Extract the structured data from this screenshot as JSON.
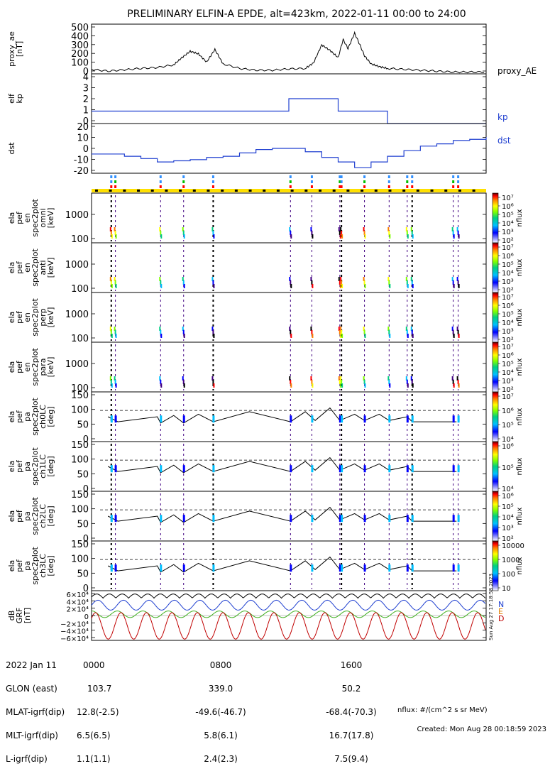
{
  "title": "PRELIMINARY ELFIN-A EPDE, alt=423km, 2022-01-11 00:00 to 24:00",
  "panels": {
    "ae": {
      "ylabel_lines": [
        "proxy_ae",
        "[nT]"
      ],
      "ticks": [
        "500",
        "400",
        "300",
        "200",
        "100",
        "0"
      ],
      "legend": "proxy_AE"
    },
    "kp": {
      "ylabel_lines": [
        "elf",
        "kp"
      ],
      "ticks": [
        "4",
        "3",
        "2",
        "1",
        "0"
      ],
      "legend": "kp"
    },
    "dst": {
      "ylabel_lines": [
        "dst"
      ],
      "ticks": [
        "20",
        "10",
        "0",
        "-10",
        "-20"
      ],
      "legend": "dst"
    },
    "spec_omni": {
      "ylabel_lines": [
        "ela",
        "pef",
        "en",
        "spec2plot",
        "omni",
        "[keV]"
      ],
      "ticks": [
        "1000",
        "100"
      ]
    },
    "spec_anti": {
      "ylabel_lines": [
        "ela",
        "pef",
        "en",
        "spec2plot",
        "anti",
        "[keV]"
      ],
      "ticks": [
        "1000",
        "100"
      ]
    },
    "spec_perp": {
      "ylabel_lines": [
        "ela",
        "pef",
        "en",
        "spec2plot",
        "perp",
        "[keV]"
      ],
      "ticks": [
        "1000",
        "100"
      ]
    },
    "spec_para": {
      "ylabel_lines": [
        "ela",
        "pef",
        "en",
        "spec2plot",
        "para",
        "[keV]"
      ],
      "ticks": [
        "1000",
        "100"
      ]
    },
    "pa0": {
      "ylabel_lines": [
        "ela",
        "pef",
        "pa",
        "spec2plot",
        "ch0LC",
        "[deg]"
      ],
      "ticks": [
        "150",
        "100",
        "50",
        "0"
      ]
    },
    "pa1": {
      "ylabel_lines": [
        "ela",
        "pef",
        "pa",
        "spec2plot",
        "ch1LC",
        "[deg]"
      ],
      "ticks": [
        "150",
        "100",
        "50",
        "0"
      ]
    },
    "pa2": {
      "ylabel_lines": [
        "ela",
        "pef",
        "pa",
        "spec2plot",
        "ch2LC",
        "[deg]"
      ],
      "ticks": [
        "150",
        "100",
        "50",
        "0"
      ]
    },
    "pa3": {
      "ylabel_lines": [
        "ela",
        "pef",
        "pa",
        "spec2plot",
        "ch3LC",
        "[deg]"
      ],
      "ticks": [
        "150",
        "100",
        "50",
        "0"
      ]
    },
    "bfield": {
      "ylabel_lines": [
        "dB",
        "GRF",
        "[nT]"
      ],
      "ticks": [
        "6×10⁴",
        "4×10⁴",
        "2×10⁴",
        "0",
        "−2×10⁴",
        "−4×10⁴",
        "−6×10⁴"
      ],
      "components": [
        "N",
        "E",
        "D"
      ]
    }
  },
  "colorbars": [
    {
      "ticks": [
        "10⁷",
        "10⁶",
        "10⁵",
        "10⁴",
        "10³",
        "10²"
      ],
      "label": "nflux"
    },
    {
      "ticks": [
        "10⁷",
        "10⁶",
        "10⁵",
        "10⁴",
        "10³",
        "10²"
      ],
      "label": "nflux"
    },
    {
      "ticks": [
        "10⁷",
        "10⁶",
        "10⁵",
        "10⁴",
        "10³",
        "10²"
      ],
      "label": "nflux"
    },
    {
      "ticks": [
        "10⁷",
        "10⁶",
        "10⁵",
        "10⁴",
        "10³",
        "10²"
      ],
      "label": "nflux"
    },
    {
      "ticks": [
        "10⁷",
        "10⁶",
        "10⁵",
        "10⁴"
      ],
      "label": "nflux"
    },
    {
      "ticks": [
        "10⁶",
        "10⁵",
        "10⁴"
      ],
      "label": "nflux"
    },
    {
      "ticks": [
        "10⁶",
        "10⁵",
        "10⁴",
        "10³",
        "10²"
      ],
      "label": "nflux"
    },
    {
      "ticks": [
        "10000",
        "1000",
        "100",
        "10"
      ],
      "label": "nflux"
    }
  ],
  "side_note": "Sun Aug 27 17:18:58 2023",
  "bottom": {
    "labels": [
      "2022 Jan 11",
      "GLON (east)",
      "MLAT-igrf(dip)",
      "MLT-igrf(dip)",
      "L-igrf(dip)"
    ],
    "col0": [
      "0000",
      "103.7",
      "12.8(-2.5)",
      "6.5(6.5)",
      "1.1(1.1)"
    ],
    "col1": [
      "0800",
      "339.0",
      "-49.6(-46.7)",
      "5.8(6.1)",
      "2.4(2.3)"
    ],
    "col2": [
      "1600",
      "50.2",
      "-68.4(-70.3)",
      "16.7(17.8)",
      "7.5(9.4)"
    ],
    "units_note": "nflux: #/(cm^2 s sr MeV)",
    "created": "Created: Mon Aug 28 00:18:59 2023"
  },
  "chart_data": [
    {
      "type": "line",
      "name": "proxy_AE",
      "x_hours": [
        0,
        1,
        2,
        3,
        4,
        5,
        5.5,
        6,
        6.5,
        7,
        7.5,
        8,
        9,
        10,
        11,
        12,
        13,
        13.5,
        14,
        14.5,
        15,
        15.3,
        15.6,
        16,
        16.3,
        16.6,
        17,
        17.5,
        18,
        19,
        20,
        21,
        22,
        23,
        24
      ],
      "y": [
        50,
        30,
        45,
        60,
        70,
        100,
        180,
        250,
        220,
        130,
        270,
        110,
        60,
        40,
        40,
        55,
        60,
        120,
        320,
        260,
        180,
        380,
        280,
        450,
        330,
        200,
        110,
        80,
        60,
        50,
        40,
        30,
        20,
        20,
        20
      ],
      "ylim": [
        0,
        550
      ]
    },
    {
      "type": "line",
      "name": "kp",
      "x_hours": [
        0,
        12,
        12,
        15,
        15,
        18,
        18,
        24
      ],
      "y": [
        1,
        1,
        2,
        2,
        1,
        1,
        0,
        0
      ],
      "ylim": [
        0,
        4
      ]
    },
    {
      "type": "line",
      "name": "dst",
      "x_hours": [
        0,
        1,
        2,
        3,
        4,
        5,
        6,
        7,
        8,
        9,
        10,
        11,
        12,
        13,
        14,
        15,
        16,
        17,
        18,
        19,
        20,
        21,
        22,
        23,
        24
      ],
      "y": [
        -5,
        -5,
        -7,
        -9,
        -12,
        -11,
        -10,
        -8,
        -7,
        -4,
        -1,
        0,
        0,
        -3,
        -8,
        -12,
        -17,
        -12,
        -7,
        -2,
        2,
        4,
        7,
        8,
        10
      ],
      "ylim": [
        -22,
        22
      ]
    },
    {
      "type": "line",
      "name": "pa_lines",
      "loss_cone_deg": 90,
      "anti_loss_cone_deg": 115,
      "ylim": [
        0,
        180
      ]
    },
    {
      "type": "line",
      "name": "dB_GRF",
      "series": [
        {
          "name": "N"
        },
        {
          "name": "E"
        },
        {
          "name": "D"
        }
      ],
      "ylim": [
        -60000,
        60000
      ]
    }
  ],
  "colors": {
    "kp": "#1f3fd0",
    "dst": "#1f3fd0",
    "N": "#2040d0",
    "E": "#e08000",
    "D": "#c00000",
    "trace": "#000000",
    "orbit_bar": "#ffe000"
  }
}
